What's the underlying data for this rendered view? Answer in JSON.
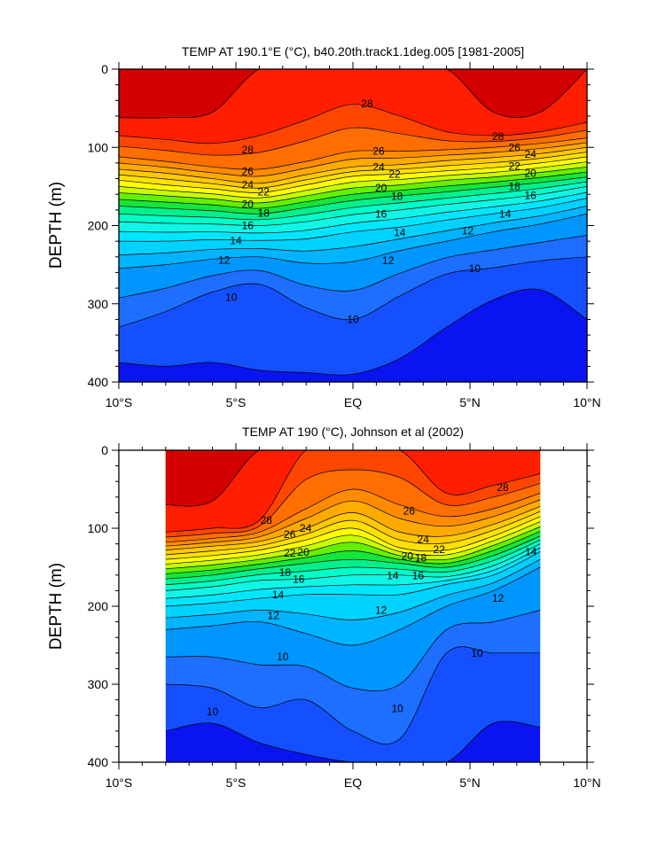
{
  "chart_data": [
    {
      "type": "contour",
      "title": "TEMP AT 190.1°E (°C), b40.20th.track1.1deg.005 [1981-2005]",
      "xlabel": "",
      "ylabel": "DEPTH (m)",
      "xlim": [
        -10,
        10
      ],
      "ylim": [
        400,
        0
      ],
      "y_ticks": [
        "0",
        "100",
        "200",
        "300",
        "400"
      ],
      "x_ticks": [
        "10°S",
        "5°S",
        "EQ",
        "5°N",
        "10°N"
      ],
      "x_tick_values": [
        -10,
        -5,
        0,
        5,
        10
      ],
      "contour_interval": 1,
      "latitudes": [
        -10,
        -8,
        -6,
        -4,
        -2,
        0,
        2,
        4,
        6,
        8,
        10
      ],
      "isotherm_depths": {
        "9": [
          375,
          380,
          375,
          385,
          388,
          390,
          370,
          330,
          295,
          282,
          320
        ],
        "10": [
          330,
          310,
          285,
          275,
          305,
          320,
          290,
          262,
          254,
          245,
          240
        ],
        "12": [
          255,
          250,
          243,
          240,
          248,
          246,
          232,
          220,
          208,
          198,
          185
        ],
        "14": [
          220,
          220,
          218,
          219,
          217,
          208,
          202,
          193,
          185,
          177,
          165
        ],
        "16": [
          195,
          197,
          198,
          200,
          195,
          186,
          180,
          173,
          167,
          160,
          150
        ],
        "18": [
          175,
          178,
          181,
          185,
          177,
          168,
          162,
          157,
          151,
          145,
          138
        ],
        "20": [
          158,
          162,
          166,
          171,
          162,
          152,
          148,
          142,
          138,
          132,
          125
        ],
        "22": [
          142,
          148,
          153,
          158,
          148,
          137,
          134,
          130,
          126,
          120,
          112
        ],
        "24": [
          128,
          133,
          140,
          146,
          135,
          125,
          122,
          117,
          113,
          108,
          100
        ],
        "26": [
          112,
          118,
          125,
          128,
          118,
          105,
          105,
          103,
          100,
          95,
          88
        ],
        "28": [
          85,
          90,
          95,
          85,
          65,
          45,
          60,
          80,
          85,
          80,
          68
        ],
        "29": [
          62,
          62,
          55,
          0,
          0,
          0,
          0,
          0,
          55,
          55,
          0
        ]
      },
      "contour_labels": [
        {
          "text": "28",
          "lat": 0.6,
          "depth": 44
        },
        {
          "text": "28",
          "lat": -4.5,
          "depth": 103
        },
        {
          "text": "26",
          "lat": -4.5,
          "depth": 131
        },
        {
          "text": "24",
          "lat": -4.5,
          "depth": 148
        },
        {
          "text": "22",
          "lat": -4.5,
          "depth": 160
        },
        {
          "text": "20",
          "lat": -4.5,
          "depth": 173
        },
        {
          "text": "18",
          "lat": -4.5,
          "depth": 186
        },
        {
          "text": "16",
          "lat": -4.5,
          "depth": 200
        },
        {
          "text": "14",
          "lat": -5,
          "depth": 219
        },
        {
          "text": "12",
          "lat": -5.5,
          "depth": 244
        },
        {
          "text": "10",
          "lat": -5.2,
          "depth": 292
        },
        {
          "text": "26",
          "lat": 1.1,
          "depth": 105
        },
        {
          "text": "24",
          "lat": 1.1,
          "depth": 125
        },
        {
          "text": "22",
          "lat": 1.1,
          "depth": 138
        },
        {
          "text": "20",
          "lat": 1.2,
          "depth": 152
        },
        {
          "text": "18",
          "lat": 1.2,
          "depth": 168
        },
        {
          "text": "16",
          "lat": 1.2,
          "depth": 185
        },
        {
          "text": "14",
          "lat": 2,
          "depth": 209
        },
        {
          "text": "12",
          "lat": 1.5,
          "depth": 245
        },
        {
          "text": "10",
          "lat": 0,
          "depth": 320
        },
        {
          "text": "28",
          "lat": 6.2,
          "depth": 86
        },
        {
          "text": "26",
          "lat": 6.9,
          "depth": 100
        },
        {
          "text": "24",
          "lat": 6.9,
          "depth": 112
        },
        {
          "text": "22",
          "lat": 6.9,
          "depth": 124
        },
        {
          "text": "20",
          "lat": 6.9,
          "depth": 137
        },
        {
          "text": "18",
          "lat": 6.9,
          "depth": 150
        },
        {
          "text": "16",
          "lat": 6.9,
          "depth": 166
        },
        {
          "text": "14",
          "lat": 6.5,
          "depth": 185
        },
        {
          "text": "12",
          "lat": 4.9,
          "depth": 207
        },
        {
          "text": "10",
          "lat": 5.2,
          "depth": 255
        }
      ]
    },
    {
      "type": "contour",
      "title": "TEMP AT 190 (°C), Johnson et al (2002)",
      "xlabel": "",
      "ylabel": "DEPTH (m)",
      "xlim": [
        -10,
        10
      ],
      "ylim": [
        400,
        0
      ],
      "y_ticks": [
        "0",
        "100",
        "200",
        "300",
        "400"
      ],
      "x_ticks": [
        "10°S",
        "5°S",
        "EQ",
        "5°N",
        "10°N"
      ],
      "x_tick_values": [
        -10,
        -5,
        0,
        5,
        10
      ],
      "contour_interval": 1,
      "latitudes": [
        -8,
        -6,
        -4,
        -2,
        0,
        2,
        4,
        6,
        8
      ],
      "isotherm_depths": {
        "9": [
          360,
          350,
          375,
          390,
          400,
          400,
          400,
          350,
          355
        ],
        "10": [
          300,
          305,
          330,
          320,
          360,
          370,
          260,
          260,
          260
        ],
        "12": [
          230,
          225,
          220,
          235,
          250,
          230,
          200,
          180,
          150
        ],
        "14": [
          200,
          196,
          190,
          185,
          185,
          185,
          172,
          160,
          130
        ],
        "16": [
          180,
          175,
          167,
          165,
          160,
          160,
          162,
          148,
          120
        ],
        "18": [
          165,
          160,
          152,
          145,
          140,
          145,
          150,
          135,
          110
        ],
        "20": [
          152,
          147,
          140,
          130,
          118,
          135,
          140,
          122,
          98
        ],
        "22": [
          140,
          135,
          128,
          115,
          100,
          125,
          128,
          110,
          85
        ],
        "24": [
          128,
          123,
          117,
          100,
          80,
          105,
          110,
          95,
          72
        ],
        "26": [
          118,
          113,
          105,
          75,
          50,
          70,
          85,
          75,
          55
        ],
        "28": [
          105,
          100,
          90,
          0,
          0,
          0,
          55,
          45,
          30
        ],
        "29": [
          70,
          65,
          0,
          0,
          0,
          0,
          0,
          0,
          0
        ]
      },
      "contour_labels": [
        {
          "text": "28",
          "lat": -3.7,
          "depth": 90
        },
        {
          "text": "26",
          "lat": -2.7,
          "depth": 108
        },
        {
          "text": "24",
          "lat": -2.7,
          "depth": 121
        },
        {
          "text": "22",
          "lat": -2.7,
          "depth": 132
        },
        {
          "text": "20",
          "lat": -2.8,
          "depth": 143
        },
        {
          "text": "18",
          "lat": -2.9,
          "depth": 157
        },
        {
          "text": "16",
          "lat": -3.0,
          "depth": 170
        },
        {
          "text": "14",
          "lat": -3.2,
          "depth": 185
        },
        {
          "text": "12",
          "lat": -3.4,
          "depth": 212
        },
        {
          "text": "10",
          "lat": -3.0,
          "depth": 265
        },
        {
          "text": "28",
          "lat": 6.4,
          "depth": 48
        },
        {
          "text": "26",
          "lat": 2.4,
          "depth": 78
        },
        {
          "text": "24",
          "lat": 3.0,
          "depth": 114
        },
        {
          "text": "22",
          "lat": 3.0,
          "depth": 123
        },
        {
          "text": "20",
          "lat": 3.0,
          "depth": 131
        },
        {
          "text": "18",
          "lat": 2.9,
          "depth": 138
        },
        {
          "text": "16",
          "lat": 2.1,
          "depth": 151
        },
        {
          "text": "14",
          "lat": 1.7,
          "depth": 161
        },
        {
          "text": "12",
          "lat": 1.2,
          "depth": 205
        },
        {
          "text": "10",
          "lat": 1.9,
          "depth": 331
        },
        {
          "text": "12",
          "lat": 6.2,
          "depth": 190
        },
        {
          "text": "14",
          "lat": 7.6,
          "depth": 130
        },
        {
          "text": "10",
          "lat": 5.3,
          "depth": 260
        },
        {
          "text": "10",
          "lat": -6.0,
          "depth": 335
        }
      ]
    }
  ],
  "colors": {
    "8": "#0a14f0",
    "9": "#1450ff",
    "10": "#1e6eff",
    "11": "#0096ff",
    "12": "#00b4ff",
    "13": "#00d2ff",
    "14": "#00e6ff",
    "15": "#10f5e6",
    "16": "#00ffc8",
    "17": "#00f08c",
    "18": "#14e63c",
    "19": "#64f000",
    "20": "#c8ff00",
    "21": "#ffff00",
    "22": "#ffe100",
    "23": "#ffc800",
    "24": "#ffaa00",
    "25": "#ff8c00",
    "26": "#ff6e00",
    "27": "#ff4600",
    "28": "#ff1e00",
    "29": "#d20000"
  }
}
